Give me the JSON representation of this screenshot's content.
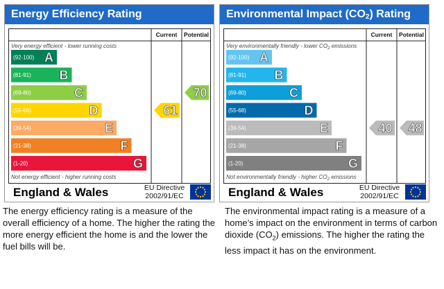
{
  "energy": {
    "title": "Energy Efficiency Rating",
    "header_current": "Current",
    "header_potential": "Potential",
    "top_note": "Very energy efficient - lower running costs",
    "bottom_note": "Not energy efficient - higher running costs",
    "region": "England & Wales",
    "directive_line1": "EU Directive",
    "directive_line2": "2002/91/EC",
    "description": "The energy efficiency rating is a measure of the overall efficiency of a home. The higher the rating the more energy efficient the home is and the lower the fuel bills will be."
  },
  "environment": {
    "title_prefix": "Environmental Impact (CO",
    "title_sub": "2",
    "title_suffix": ") Rating",
    "header_current": "Current",
    "header_potential": "Potential",
    "top_note_prefix": "Very environmentally friendly - lower CO",
    "top_note_sub": "2",
    "top_note_suffix": " emissions",
    "bottom_note_prefix": "Not environmentally friendly - higher CO",
    "bottom_note_sub": "2",
    "bottom_note_suffix": " emissions",
    "region": "England & Wales",
    "directive_line1": "EU Directive",
    "directive_line2": "2002/91/EC",
    "description_part1": "The environmental impact rating is a measure of a home’s impact on the environment in terms of carbon dioxide (CO",
    "description_sub": "2",
    "description_part2": ") emissions. The higher the rating the less impact it has on the environment."
  },
  "chart_data": [
    {
      "type": "bar",
      "title": "Energy Efficiency Rating",
      "categories": [
        "A",
        "B",
        "C",
        "D",
        "E",
        "F",
        "G"
      ],
      "ranges": [
        "(92-100)",
        "(81-91)",
        "(69-80)",
        "(55-68)",
        "(39-54)",
        "(21-38)",
        "(1-20)"
      ],
      "colors": [
        "#008054",
        "#19b459",
        "#8dce46",
        "#ffd500",
        "#fcaa65",
        "#ef8023",
        "#e9153b"
      ],
      "current": 61,
      "potential": 70,
      "current_band": "D",
      "potential_band": "C",
      "current_color": "#ffd500",
      "potential_color": "#8dce46"
    },
    {
      "type": "bar",
      "title": "Environmental Impact (CO2) Rating",
      "categories": [
        "A",
        "B",
        "C",
        "D",
        "E",
        "F",
        "G"
      ],
      "ranges": [
        "(92-100)",
        "(81-91)",
        "(69-80)",
        "(55-68)",
        "(39-54)",
        "(21-38)",
        "(1-20)"
      ],
      "colors": [
        "#63c5ef",
        "#22b6ec",
        "#0d9fda",
        "#046aab",
        "#bbbbbb",
        "#a6a6a6",
        "#808080"
      ],
      "current": 40,
      "potential": 48,
      "current_band": "E",
      "potential_band": "E",
      "current_color": "#bbbbbb",
      "potential_color": "#bbbbbb"
    }
  ]
}
